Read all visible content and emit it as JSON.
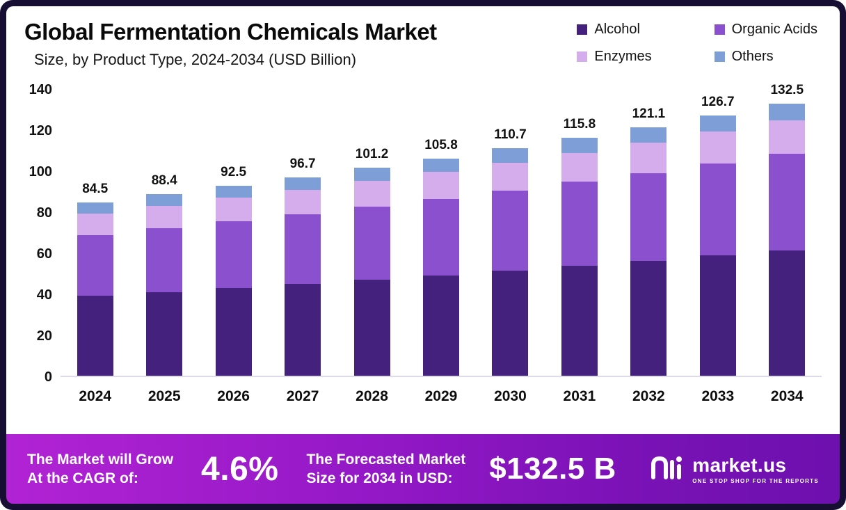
{
  "title": "Global Fermentation Chemicals Market",
  "subtitle": "Size, by Product Type, 2024-2034 (USD Billion)",
  "legend": [
    {
      "label": "Alcohol",
      "color": "#45217e"
    },
    {
      "label": "Organic Acids",
      "color": "#8a50ce"
    },
    {
      "label": "Enzymes",
      "color": "#d5adec"
    },
    {
      "label": "Others",
      "color": "#7e9ed7"
    }
  ],
  "chart_data": {
    "type": "bar",
    "stacked": true,
    "title": "Global Fermentation Chemicals Market Size, by Product Type, 2024-2034 (USD Billion)",
    "categories": [
      "2024",
      "2025",
      "2026",
      "2027",
      "2028",
      "2029",
      "2030",
      "2031",
      "2032",
      "2033",
      "2034"
    ],
    "series": [
      {
        "name": "Alcohol",
        "color": "#45217e",
        "values": [
          39.0,
          40.8,
          42.7,
          44.6,
          46.7,
          48.8,
          51.1,
          53.4,
          55.9,
          58.5,
          61.1
        ]
      },
      {
        "name": "Organic Acids",
        "color": "#8a50ce",
        "values": [
          29.5,
          31.0,
          32.5,
          34.1,
          35.7,
          37.4,
          39.2,
          41.0,
          42.9,
          44.9,
          47.0
        ]
      },
      {
        "name": "Enzymes",
        "color": "#d5adec",
        "values": [
          10.5,
          10.9,
          11.4,
          11.9,
          12.4,
          13.0,
          13.5,
          14.2,
          14.8,
          15.5,
          16.2
        ]
      },
      {
        "name": "Others",
        "color": "#7e9ed7",
        "values": [
          5.5,
          5.7,
          5.9,
          6.1,
          6.4,
          6.6,
          6.9,
          7.2,
          7.5,
          7.8,
          8.2
        ]
      }
    ],
    "totals": [
      84.5,
      88.4,
      92.5,
      96.7,
      101.2,
      105.8,
      110.7,
      115.8,
      121.1,
      126.7,
      132.5
    ],
    "xlabel": "",
    "ylabel": "",
    "ylim": [
      0,
      140
    ],
    "yticks": [
      0,
      20,
      40,
      60,
      80,
      100,
      120,
      140
    ],
    "grid": false,
    "legend_position": "top-right"
  },
  "banner": {
    "cagr_label_lines": [
      "The Market will Grow",
      "At the CAGR of:"
    ],
    "cagr_value": "4.6%",
    "forecast_label_lines": [
      "The Forecasted Market",
      "Size for 2034 in USD:"
    ],
    "forecast_value": "$132.5 B",
    "brand": {
      "name": "market.us",
      "tagline": "ONE STOP SHOP FOR THE REPORTS"
    }
  }
}
